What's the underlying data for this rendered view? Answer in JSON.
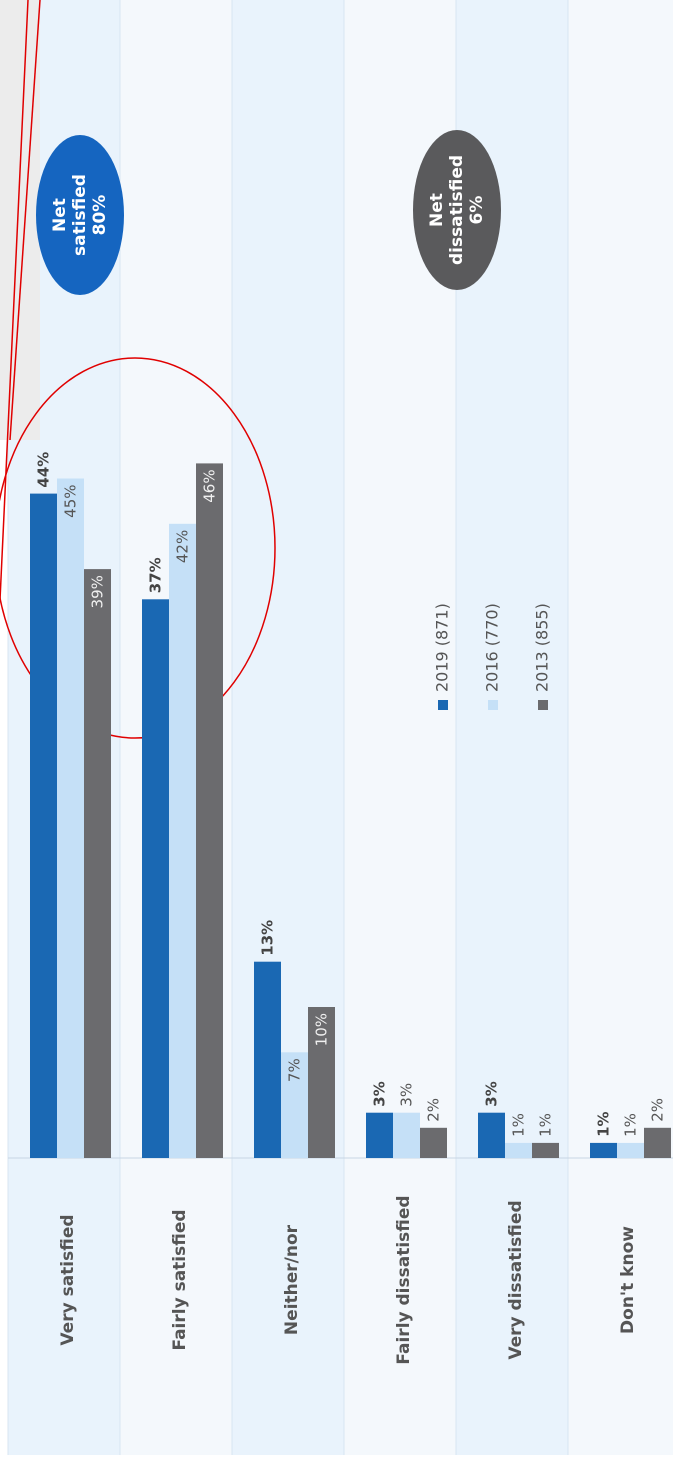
{
  "chart_data": {
    "type": "bar",
    "categories": [
      "Very satisfied",
      "Fairly satisfied",
      "Neither/nor",
      "Fairly dissatisfied",
      "Very dissatisfied",
      "Don't know"
    ],
    "series": [
      {
        "name": "2019 (871)",
        "color": "#1a68b3",
        "values": [
          44,
          37,
          13,
          3,
          3,
          1
        ],
        "value_labels": [
          "44%",
          "37%",
          "13%",
          "3%",
          "3%",
          "1%"
        ]
      },
      {
        "name": "2016 (770)",
        "color": "#c5e0f7",
        "values": [
          45,
          42,
          7,
          3,
          1,
          1
        ],
        "value_labels": [
          "45%",
          "42%",
          "7%",
          "3%",
          "1%",
          "1%"
        ]
      },
      {
        "name": "2013 (855)",
        "color": "#6b6b6e",
        "values": [
          39,
          46,
          10,
          2,
          1,
          2
        ],
        "value_labels": [
          "39%",
          "46%",
          "10%",
          "2%",
          "1%",
          "2%"
        ]
      }
    ],
    "ylim": [
      0,
      50
    ],
    "annotations": [
      {
        "lines": [
          "Net",
          "satisfied",
          "80%"
        ],
        "color": "#1565c0"
      },
      {
        "lines": [
          "Net",
          "dissatisfied",
          "6%"
        ],
        "color": "#5a5a5c"
      }
    ]
  }
}
